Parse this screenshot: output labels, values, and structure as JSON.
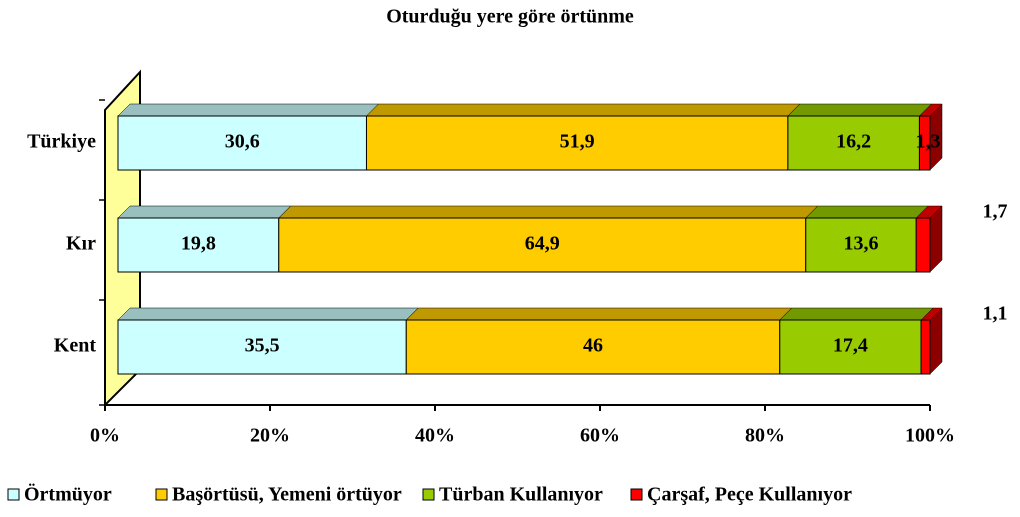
{
  "chart_data": {
    "type": "bar",
    "orientation": "horizontal",
    "stacked": true,
    "title": "Oturduğu yere göre örtünme",
    "categories": [
      "Türkiye",
      "Kır",
      "Kent"
    ],
    "series": [
      {
        "name": "Örtmüyor",
        "color": "#ccffff",
        "values": [
          30.6,
          19.8,
          35.5
        ],
        "value_labels": [
          "30,6",
          "19,8",
          "35,5"
        ]
      },
      {
        "name": "Başörtüsü, Yemeni örtüyor",
        "color": "#ffcc00",
        "values": [
          51.9,
          64.9,
          46
        ],
        "value_labels": [
          "51,9",
          "64,9",
          "46"
        ]
      },
      {
        "name": "Türban Kullanıyor",
        "color": "#99cc00",
        "values": [
          16.2,
          13.6,
          17.4
        ],
        "value_labels": [
          "16,2",
          "13,6",
          "17,4"
        ]
      },
      {
        "name": "Çarşaf, Peçe Kullanıyor",
        "color": "#ff0000",
        "values": [
          1.3,
          1.7,
          1.1
        ],
        "value_labels": [
          "1,3",
          "1,7",
          "1,1"
        ]
      }
    ],
    "xlim": [
      0,
      100
    ],
    "xticks": [
      {
        "value": 0,
        "label": "0%"
      },
      {
        "value": 20,
        "label": "20%"
      },
      {
        "value": 40,
        "label": "40%"
      },
      {
        "value": 60,
        "label": "60%"
      },
      {
        "value": 80,
        "label": "80%"
      },
      {
        "value": 100,
        "label": "100%"
      }
    ],
    "legend": "bottom"
  }
}
